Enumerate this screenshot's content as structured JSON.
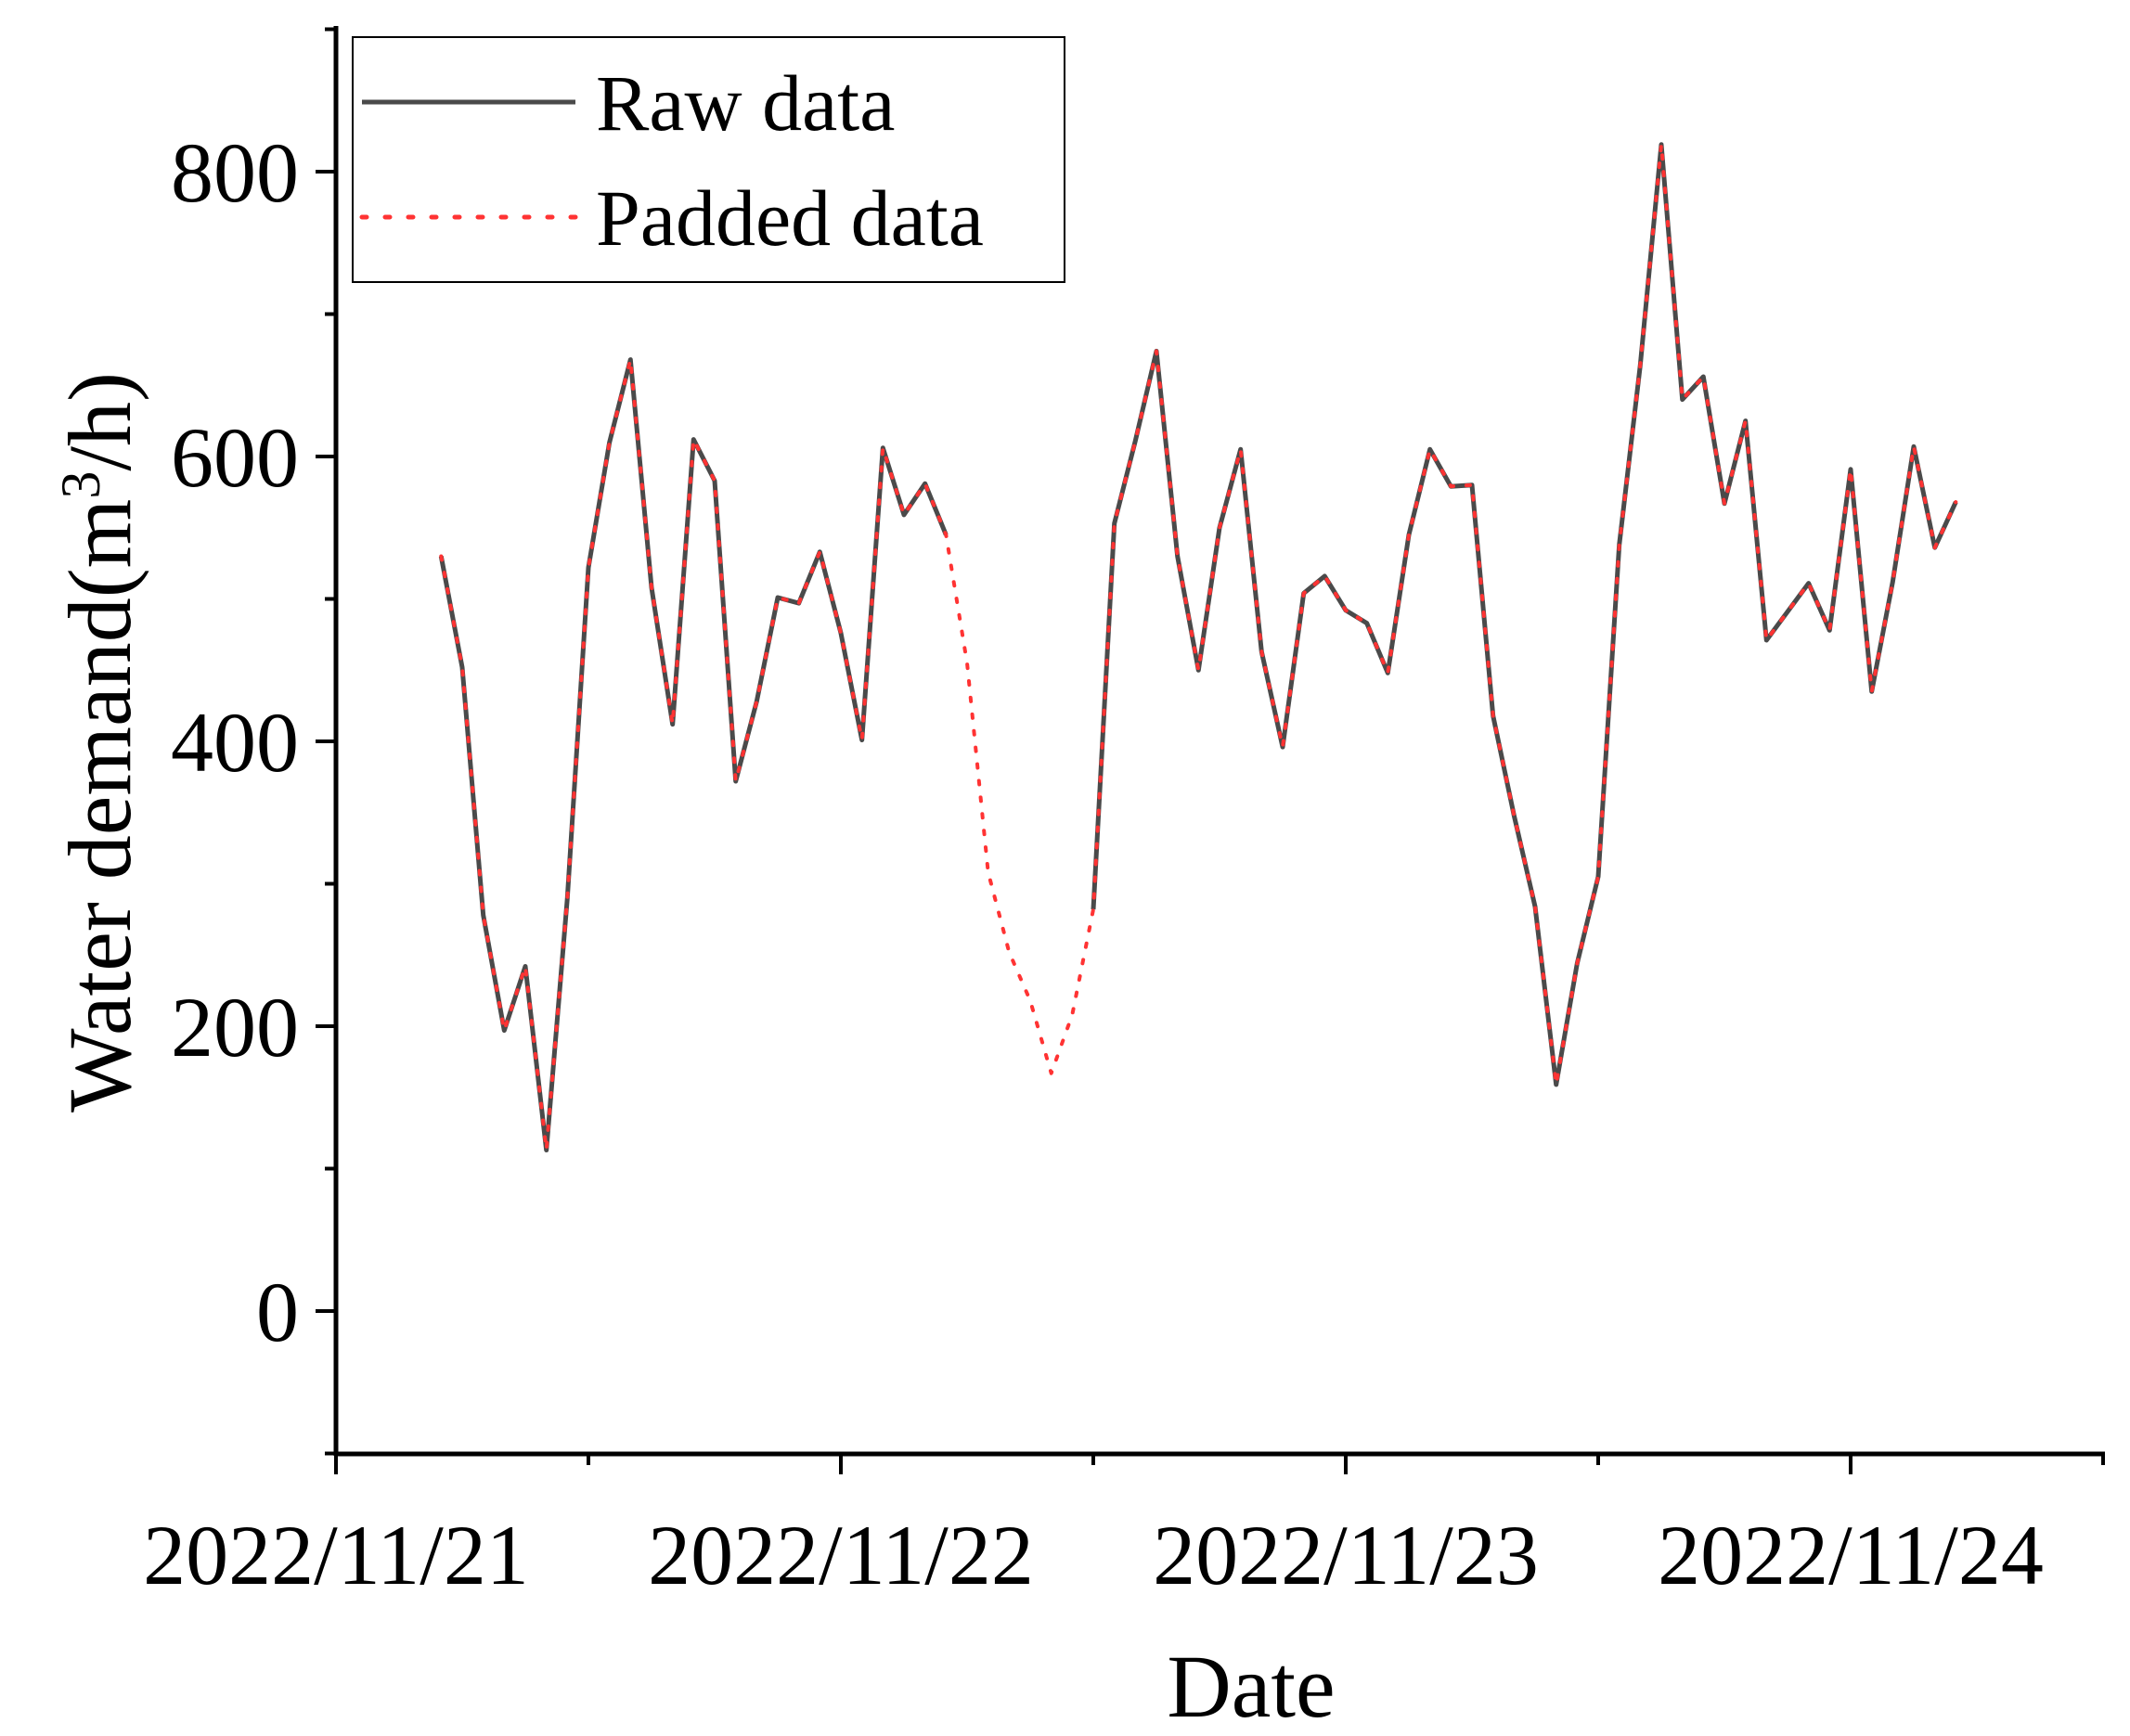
{
  "chart_data": {
    "type": "line",
    "title": "",
    "xlabel": "Date",
    "ylabel": "Water demand(m³/h)",
    "ylabel_parts": {
      "base": "Water demand(m",
      "sup": "3",
      "tail": "/h)"
    },
    "ylim": [
      -100,
      900
    ],
    "yticks": [
      0,
      200,
      400,
      600,
      800
    ],
    "ytick_labels": [
      "0",
      "200",
      "400",
      "600",
      "800"
    ],
    "xlim": [
      "2022-11-21T00:00",
      "2022-11-24T12:00"
    ],
    "xticks": [
      "2022-11-21",
      "2022-11-22",
      "2022-11-23",
      "2022-11-24"
    ],
    "xtick_labels": [
      "2022/11/21",
      "2022/11/22",
      "2022/11/23",
      "2022/11/24"
    ],
    "x_minor_ticks": [
      "2022-11-21T12:00",
      "2022-11-22T12:00",
      "2022-11-23T12:00",
      "2022-11-24T12:00"
    ],
    "grid": false,
    "legend": {
      "position": "top-left",
      "entries": [
        "Raw data",
        "Padded data"
      ]
    },
    "colors": {
      "raw": "#4a4a4a",
      "padded": "#ff3333"
    },
    "x": [
      "2022-11-21T05:00",
      "2022-11-21T06:00",
      "2022-11-21T07:00",
      "2022-11-21T08:00",
      "2022-11-21T09:00",
      "2022-11-21T10:00",
      "2022-11-21T11:00",
      "2022-11-21T12:00",
      "2022-11-21T13:00",
      "2022-11-21T14:00",
      "2022-11-21T15:00",
      "2022-11-21T16:00",
      "2022-11-21T17:00",
      "2022-11-21T18:00",
      "2022-11-21T19:00",
      "2022-11-21T20:00",
      "2022-11-21T21:00",
      "2022-11-21T22:00",
      "2022-11-21T23:00",
      "2022-11-22T00:00",
      "2022-11-22T01:00",
      "2022-11-22T02:00",
      "2022-11-22T03:00",
      "2022-11-22T04:00",
      "2022-11-22T05:00",
      "2022-11-22T06:00",
      "2022-11-22T07:00",
      "2022-11-22T08:00",
      "2022-11-22T09:00",
      "2022-11-22T10:00",
      "2022-11-22T11:00",
      "2022-11-22T12:00",
      "2022-11-22T13:00",
      "2022-11-22T14:00",
      "2022-11-22T15:00",
      "2022-11-22T16:00",
      "2022-11-22T17:00",
      "2022-11-22T18:00",
      "2022-11-22T19:00",
      "2022-11-22T20:00",
      "2022-11-22T21:00",
      "2022-11-22T22:00",
      "2022-11-22T23:00",
      "2022-11-23T00:00",
      "2022-11-23T01:00",
      "2022-11-23T02:00",
      "2022-11-23T03:00",
      "2022-11-23T04:00",
      "2022-11-23T05:00",
      "2022-11-23T06:00",
      "2022-11-23T07:00",
      "2022-11-23T08:00",
      "2022-11-23T09:00",
      "2022-11-23T10:00",
      "2022-11-23T11:00",
      "2022-11-23T12:00",
      "2022-11-23T13:00",
      "2022-11-23T14:00",
      "2022-11-23T15:00",
      "2022-11-23T16:00",
      "2022-11-23T17:00",
      "2022-11-23T18:00",
      "2022-11-23T19:00",
      "2022-11-23T20:00",
      "2022-11-23T21:00",
      "2022-11-23T22:00",
      "2022-11-23T23:00",
      "2022-11-24T00:00",
      "2022-11-24T01:00",
      "2022-11-24T02:00",
      "2022-11-24T03:00",
      "2022-11-24T04:00",
      "2022-11-24T05:00"
    ],
    "series": [
      {
        "name": "Raw data",
        "style": "solid",
        "values": [
          530,
          452,
          278,
          197,
          242,
          113,
          290,
          522,
          610,
          668,
          508,
          412,
          612,
          583,
          372,
          428,
          501,
          497,
          533,
          476,
          401,
          606,
          559,
          581,
          545,
          null,
          null,
          null,
          null,
          null,
          null,
          282,
          553,
          611,
          674,
          530,
          450,
          550,
          605,
          463,
          396,
          504,
          516,
          492,
          483,
          448,
          545,
          605,
          579,
          580,
          418,
          348,
          284,
          159,
          244,
          305,
          538,
          664,
          819,
          640,
          656,
          567,
          625,
          471,
          491,
          511,
          478,
          591,
          435,
          512,
          607,
          536,
          568
        ]
      },
      {
        "name": "Padded data",
        "style": "dotted",
        "values": [
          530,
          452,
          278,
          197,
          242,
          113,
          290,
          522,
          610,
          668,
          508,
          412,
          612,
          583,
          372,
          428,
          501,
          497,
          533,
          476,
          401,
          606,
          559,
          581,
          545,
          455,
          308,
          252,
          218,
          167,
          208,
          282,
          553,
          611,
          674,
          530,
          450,
          550,
          605,
          463,
          396,
          504,
          516,
          492,
          483,
          448,
          545,
          605,
          579,
          580,
          418,
          348,
          284,
          159,
          244,
          305,
          538,
          664,
          819,
          640,
          656,
          567,
          625,
          471,
          491,
          511,
          478,
          591,
          435,
          512,
          607,
          536,
          568
        ]
      }
    ]
  }
}
